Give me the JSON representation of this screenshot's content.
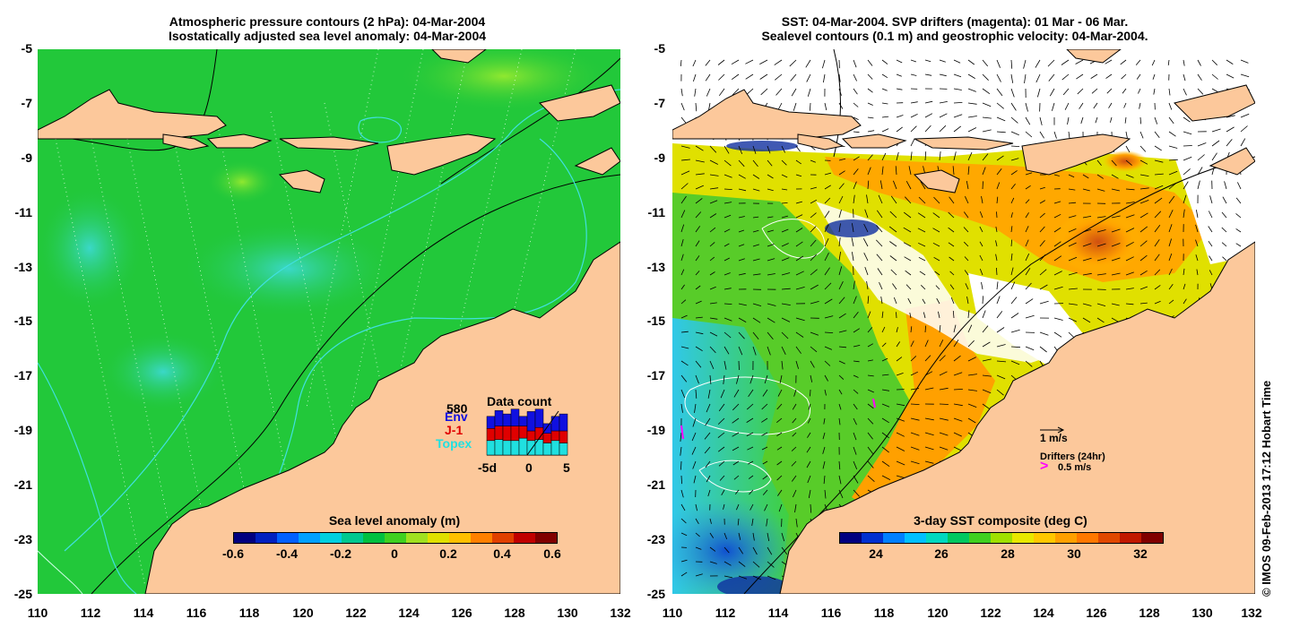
{
  "left_panel": {
    "title_line1": "Atmospheric pressure contours (2 hPa): 04-Mar-2004",
    "title_line2": "Isostatically adjusted sea level anomaly: 04-Mar-2004",
    "colorbar": {
      "title": "Sea level anomaly (m)",
      "ticks": [
        "-0.6",
        "-0.4",
        "-0.2",
        "0",
        "0.2",
        "0.4",
        "0.6"
      ],
      "colors": [
        "#000080",
        "#0020c0",
        "#0060ff",
        "#00a0ff",
        "#00d0e0",
        "#00c890",
        "#00c040",
        "#40d020",
        "#a0e020",
        "#e0e000",
        "#ffc000",
        "#ff8000",
        "#e04000",
        "#c00000",
        "#800000"
      ]
    },
    "data_count": {
      "title": "Data count",
      "max_label": "580",
      "legend": [
        {
          "name": "Env",
          "color": "#1010e0"
        },
        {
          "name": "J-1",
          "color": "#e00000"
        },
        {
          "name": "Topex",
          "color": "#20e0e0"
        }
      ],
      "xticks": [
        "-5d",
        "0",
        "5"
      ],
      "bars": [
        {
          "topex": 0.3,
          "j1": 0.25,
          "env": 0.25
        },
        {
          "topex": 0.32,
          "j1": 0.28,
          "env": 0.32
        },
        {
          "topex": 0.3,
          "j1": 0.3,
          "env": 0.25
        },
        {
          "topex": 0.3,
          "j1": 0.3,
          "env": 0.35
        },
        {
          "topex": 0.35,
          "j1": 0.25,
          "env": 0.2
        },
        {
          "topex": 0.3,
          "j1": 0.2,
          "env": 0.4
        },
        {
          "topex": 0.32,
          "j1": 0.25,
          "env": 0.38
        },
        {
          "topex": 0.25,
          "j1": 0.2,
          "env": 0.2
        },
        {
          "topex": 0.3,
          "j1": 0.2,
          "env": 0.3
        },
        {
          "topex": 0.25,
          "j1": 0.25,
          "env": 0.35
        }
      ]
    }
  },
  "right_panel": {
    "title_line1": "SST: 04-Mar-2004. SVP drifters (magenta): 01 Mar - 06 Mar.",
    "title_line2": "Sealevel contours (0.1 m) and geostrophic velocity: 04-Mar-2004.",
    "colorbar": {
      "title": "3-day SST composite (deg C)",
      "ticks": [
        "24",
        "26",
        "28",
        "30",
        "32"
      ],
      "colors": [
        "#000080",
        "#0030d0",
        "#0080ff",
        "#00c0ff",
        "#00d8c0",
        "#00c860",
        "#40d020",
        "#a0e000",
        "#e8e800",
        "#ffc800",
        "#ffa000",
        "#ff7800",
        "#e04800",
        "#c01800",
        "#800000"
      ]
    },
    "velocity_legend": {
      "label": "1 m/s"
    },
    "drifter_legend": {
      "label1": "Drifters (24hr)",
      "label2": "0.5 m/s",
      "color": "#ff00ff"
    }
  },
  "axes": {
    "lon_ticks": [
      "110",
      "112",
      "114",
      "116",
      "118",
      "120",
      "122",
      "124",
      "126",
      "128",
      "130",
      "132"
    ],
    "lat_ticks": [
      "-5",
      "-7",
      "-9",
      "-11",
      "-13",
      "-15",
      "-17",
      "-19",
      "-21",
      "-23",
      "-25"
    ],
    "lon_range": [
      110,
      132
    ],
    "lat_range": [
      -25,
      -5
    ]
  },
  "credit": "© IMOS 09-Feb-2013 17:12 Hobart Time",
  "colors": {
    "land": "#fcc89b",
    "ocean_green": "#22c83a",
    "ocean_cyan": "#30d8c0"
  }
}
